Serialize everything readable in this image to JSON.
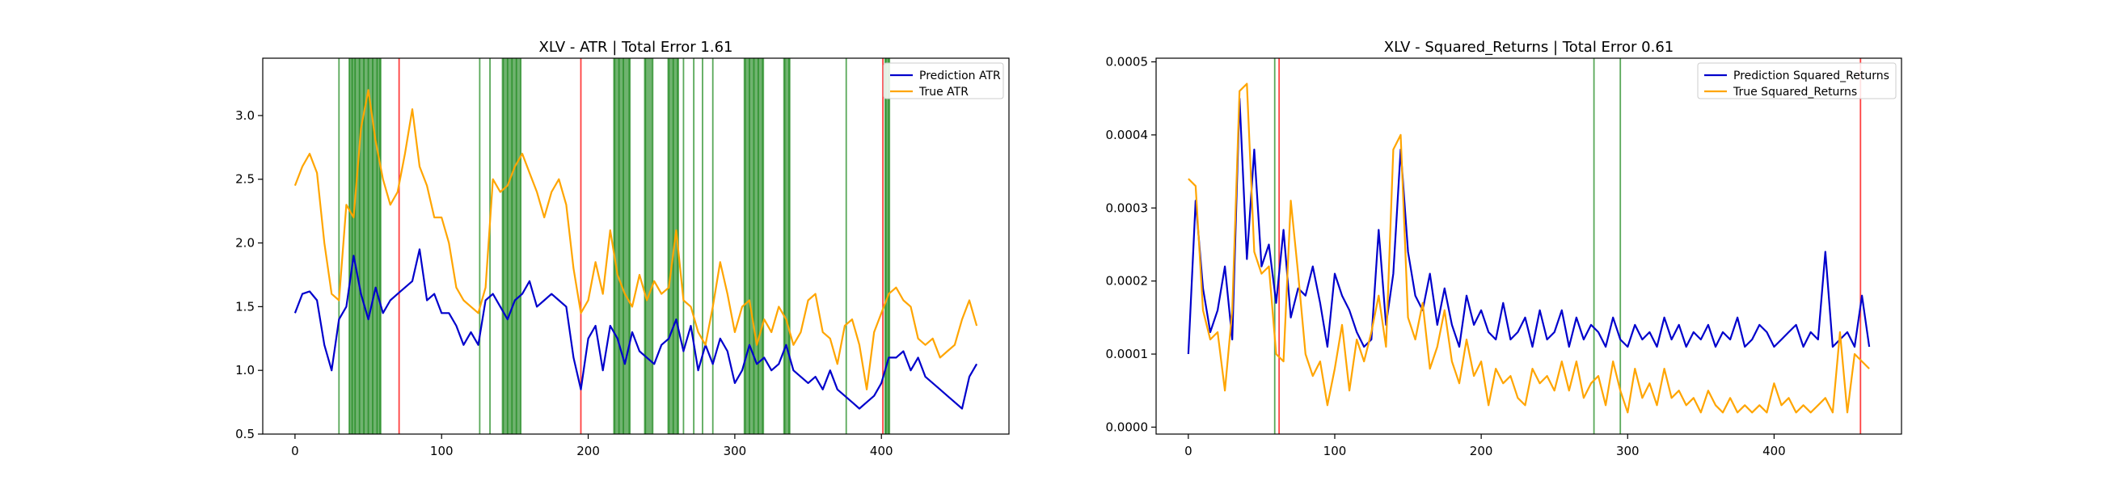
{
  "chart_data": [
    {
      "type": "line",
      "title": "XLV - ATR | Total Error 1.61",
      "xlabel": "",
      "ylabel": "",
      "xlim": [
        -22,
        487
      ],
      "ylim": [
        0.5,
        3.45
      ],
      "xticks": [
        0,
        100,
        200,
        300,
        400
      ],
      "yticks": [
        0.5,
        1.0,
        1.5,
        2.0,
        2.5,
        3.0
      ],
      "ytick_labels": [
        "0.5",
        "1.0",
        "1.5",
        "2.0",
        "2.5",
        "3.0"
      ],
      "legend": {
        "placement": "top-right"
      },
      "series": [
        {
          "name": "Prediction ATR",
          "color": "#0000cc",
          "x": [
            0,
            5,
            10,
            15,
            20,
            25,
            30,
            35,
            40,
            45,
            50,
            55,
            60,
            65,
            70,
            75,
            80,
            85,
            90,
            95,
            100,
            105,
            110,
            115,
            120,
            125,
            130,
            135,
            140,
            145,
            150,
            155,
            160,
            165,
            170,
            175,
            180,
            185,
            190,
            195,
            200,
            205,
            210,
            215,
            220,
            225,
            230,
            235,
            240,
            245,
            250,
            255,
            260,
            265,
            270,
            275,
            280,
            285,
            290,
            295,
            300,
            305,
            310,
            315,
            320,
            325,
            330,
            335,
            340,
            345,
            350,
            355,
            360,
            365,
            370,
            375,
            380,
            385,
            390,
            395,
            400,
            405,
            410,
            415,
            420,
            425,
            430,
            435,
            440,
            445,
            450,
            455,
            460,
            465
          ],
          "values": [
            1.45,
            1.6,
            1.62,
            1.55,
            1.2,
            1.0,
            1.4,
            1.5,
            1.9,
            1.6,
            1.4,
            1.65,
            1.45,
            1.55,
            1.6,
            1.65,
            1.7,
            1.95,
            1.55,
            1.6,
            1.45,
            1.45,
            1.35,
            1.2,
            1.3,
            1.2,
            1.55,
            1.6,
            1.5,
            1.4,
            1.55,
            1.6,
            1.7,
            1.5,
            1.55,
            1.6,
            1.55,
            1.5,
            1.1,
            0.85,
            1.25,
            1.35,
            1.0,
            1.35,
            1.25,
            1.05,
            1.3,
            1.15,
            1.1,
            1.05,
            1.2,
            1.25,
            1.4,
            1.15,
            1.35,
            1.0,
            1.2,
            1.05,
            1.25,
            1.15,
            0.9,
            1.0,
            1.2,
            1.05,
            1.1,
            1.0,
            1.05,
            1.2,
            1.0,
            0.95,
            0.9,
            0.95,
            0.85,
            1.0,
            0.85,
            0.8,
            0.75,
            0.7,
            0.75,
            0.8,
            0.9,
            1.1,
            1.1,
            1.15,
            1.0,
            1.1,
            0.95,
            0.9,
            0.85,
            0.8,
            0.75,
            0.7,
            0.95,
            1.05
          ]
        },
        {
          "name": "True ATR",
          "color": "#ffa500",
          "x": [
            0,
            5,
            10,
            15,
            20,
            25,
            30,
            35,
            40,
            45,
            50,
            55,
            60,
            65,
            70,
            75,
            80,
            85,
            90,
            95,
            100,
            105,
            110,
            115,
            120,
            125,
            130,
            135,
            140,
            145,
            150,
            155,
            160,
            165,
            170,
            175,
            180,
            185,
            190,
            195,
            200,
            205,
            210,
            215,
            220,
            225,
            230,
            235,
            240,
            245,
            250,
            255,
            260,
            265,
            270,
            275,
            280,
            285,
            290,
            295,
            300,
            305,
            310,
            315,
            320,
            325,
            330,
            335,
            340,
            345,
            350,
            355,
            360,
            365,
            370,
            375,
            380,
            385,
            390,
            395,
            400,
            405,
            410,
            415,
            420,
            425,
            430,
            435,
            440,
            445,
            450,
            455,
            460,
            465
          ],
          "values": [
            2.45,
            2.6,
            2.7,
            2.55,
            2.0,
            1.6,
            1.55,
            2.3,
            2.2,
            2.9,
            3.2,
            2.8,
            2.5,
            2.3,
            2.4,
            2.7,
            3.05,
            2.6,
            2.45,
            2.2,
            2.2,
            2.0,
            1.65,
            1.55,
            1.5,
            1.45,
            1.65,
            2.5,
            2.4,
            2.45,
            2.6,
            2.7,
            2.55,
            2.4,
            2.2,
            2.4,
            2.5,
            2.3,
            1.8,
            1.45,
            1.55,
            1.85,
            1.6,
            2.1,
            1.75,
            1.6,
            1.5,
            1.75,
            1.55,
            1.7,
            1.6,
            1.65,
            2.1,
            1.55,
            1.5,
            1.3,
            1.2,
            1.5,
            1.85,
            1.6,
            1.3,
            1.5,
            1.55,
            1.2,
            1.4,
            1.3,
            1.5,
            1.4,
            1.2,
            1.3,
            1.55,
            1.6,
            1.3,
            1.25,
            1.05,
            1.35,
            1.4,
            1.2,
            0.85,
            1.3,
            1.45,
            1.6,
            1.65,
            1.55,
            1.5,
            1.25,
            1.2,
            1.25,
            1.1,
            1.15,
            1.2,
            1.4,
            1.55,
            1.35
          ]
        }
      ],
      "vlines": [
        {
          "x": 30,
          "color": "#228b22"
        },
        {
          "x": 37,
          "color": "#228b22"
        },
        {
          "x": 39,
          "color": "#228b22"
        },
        {
          "x": 41,
          "color": "#228b22"
        },
        {
          "x": 44,
          "color": "#228b22"
        },
        {
          "x": 47,
          "color": "#228b22"
        },
        {
          "x": 50,
          "color": "#228b22"
        },
        {
          "x": 53,
          "color": "#228b22"
        },
        {
          "x": 56,
          "color": "#228b22"
        },
        {
          "x": 58,
          "color": "#228b22"
        },
        {
          "x": 71,
          "color": "#ff0000"
        },
        {
          "x": 126,
          "color": "#228b22"
        },
        {
          "x": 133,
          "color": "#228b22"
        },
        {
          "x": 142,
          "color": "#228b22"
        },
        {
          "x": 145,
          "color": "#228b22"
        },
        {
          "x": 148,
          "color": "#228b22"
        },
        {
          "x": 151,
          "color": "#228b22"
        },
        {
          "x": 154,
          "color": "#228b22"
        },
        {
          "x": 195,
          "color": "#ff0000"
        },
        {
          "x": 218,
          "color": "#228b22"
        },
        {
          "x": 221,
          "color": "#228b22"
        },
        {
          "x": 224,
          "color": "#228b22"
        },
        {
          "x": 228,
          "color": "#228b22"
        },
        {
          "x": 239,
          "color": "#228b22"
        },
        {
          "x": 244,
          "color": "#228b22"
        },
        {
          "x": 255,
          "color": "#228b22"
        },
        {
          "x": 258,
          "color": "#228b22"
        },
        {
          "x": 261,
          "color": "#228b22"
        },
        {
          "x": 265,
          "color": "#228b22"
        },
        {
          "x": 272,
          "color": "#228b22"
        },
        {
          "x": 278,
          "color": "#228b22"
        },
        {
          "x": 285,
          "color": "#228b22"
        },
        {
          "x": 307,
          "color": "#228b22"
        },
        {
          "x": 310,
          "color": "#228b22"
        },
        {
          "x": 313,
          "color": "#228b22"
        },
        {
          "x": 316,
          "color": "#228b22"
        },
        {
          "x": 319,
          "color": "#228b22"
        },
        {
          "x": 334,
          "color": "#228b22"
        },
        {
          "x": 337,
          "color": "#228b22"
        },
        {
          "x": 376,
          "color": "#228b22"
        },
        {
          "x": 401,
          "color": "#ff0000"
        },
        {
          "x": 403,
          "color": "#228b22"
        },
        {
          "x": 405,
          "color": "#228b22"
        }
      ],
      "shaded_spans": [
        {
          "x0": 37,
          "x1": 59,
          "color": "#228b22"
        },
        {
          "x0": 141,
          "x1": 154,
          "color": "#228b22"
        },
        {
          "x0": 217,
          "x1": 229,
          "color": "#228b22"
        },
        {
          "x0": 238,
          "x1": 244,
          "color": "#228b22"
        },
        {
          "x0": 254,
          "x1": 262,
          "color": "#228b22"
        },
        {
          "x0": 306,
          "x1": 320,
          "color": "#228b22"
        },
        {
          "x0": 333,
          "x1": 338,
          "color": "#228b22"
        },
        {
          "x0": 402,
          "x1": 406,
          "color": "#228b22"
        }
      ]
    },
    {
      "type": "line",
      "title": "XLV - Squared_Returns | Total Error 0.61",
      "xlabel": "",
      "ylabel": "",
      "xlim": [
        -22,
        487
      ],
      "ylim": [
        -9.5e-06,
        0.000505
      ],
      "xticks": [
        0,
        100,
        200,
        300,
        400
      ],
      "yticks": [
        0.0,
        0.0001,
        0.0002,
        0.0003,
        0.0004,
        0.0005
      ],
      "ytick_labels": [
        "0.0000",
        "0.0001",
        "0.0002",
        "0.0003",
        "0.0004",
        "0.0005"
      ],
      "legend": {
        "placement": "top-right"
      },
      "series": [
        {
          "name": "Prediction Squared_Returns",
          "color": "#0000cc",
          "x": [
            0,
            5,
            10,
            15,
            20,
            25,
            30,
            35,
            40,
            45,
            50,
            55,
            60,
            65,
            70,
            75,
            80,
            85,
            90,
            95,
            100,
            105,
            110,
            115,
            120,
            125,
            130,
            135,
            140,
            145,
            150,
            155,
            160,
            165,
            170,
            175,
            180,
            185,
            190,
            195,
            200,
            205,
            210,
            215,
            220,
            225,
            230,
            235,
            240,
            245,
            250,
            255,
            260,
            265,
            270,
            275,
            280,
            285,
            290,
            295,
            300,
            305,
            310,
            315,
            320,
            325,
            330,
            335,
            340,
            345,
            350,
            355,
            360,
            365,
            370,
            375,
            380,
            385,
            390,
            395,
            400,
            405,
            410,
            415,
            420,
            425,
            430,
            435,
            440,
            445,
            450,
            455,
            460,
            465
          ],
          "values": [
            0.0001,
            0.00031,
            0.00019,
            0.00013,
            0.00016,
            0.00022,
            0.00012,
            0.00045,
            0.00023,
            0.00038,
            0.00022,
            0.00025,
            0.00017,
            0.00027,
            0.00015,
            0.00019,
            0.00018,
            0.00022,
            0.00017,
            0.00011,
            0.00021,
            0.00018,
            0.00016,
            0.00013,
            0.00011,
            0.00012,
            0.00027,
            0.00014,
            0.00021,
            0.00038,
            0.00024,
            0.00018,
            0.00016,
            0.00021,
            0.00014,
            0.00019,
            0.00014,
            0.00011,
            0.00018,
            0.00014,
            0.00016,
            0.00013,
            0.00012,
            0.00017,
            0.00012,
            0.00013,
            0.00015,
            0.00011,
            0.00016,
            0.00012,
            0.00013,
            0.00016,
            0.00011,
            0.00015,
            0.00012,
            0.00014,
            0.00013,
            0.00011,
            0.00015,
            0.00012,
            0.00011,
            0.00014,
            0.00012,
            0.00013,
            0.00011,
            0.00015,
            0.00012,
            0.00014,
            0.00011,
            0.00013,
            0.00012,
            0.00014,
            0.00011,
            0.00013,
            0.00012,
            0.00015,
            0.00011,
            0.00012,
            0.00014,
            0.00013,
            0.00011,
            0.00012,
            0.00013,
            0.00014,
            0.00011,
            0.00013,
            0.00012,
            0.00024,
            0.00011,
            0.00012,
            0.00013,
            0.00011,
            0.00018,
            0.00011
          ]
        },
        {
          "name": "True Squared_Returns",
          "color": "#ffa500",
          "x": [
            0,
            5,
            10,
            15,
            20,
            25,
            30,
            35,
            40,
            45,
            50,
            55,
            60,
            65,
            70,
            75,
            80,
            85,
            90,
            95,
            100,
            105,
            110,
            115,
            120,
            125,
            130,
            135,
            140,
            145,
            150,
            155,
            160,
            165,
            170,
            175,
            180,
            185,
            190,
            195,
            200,
            205,
            210,
            215,
            220,
            225,
            230,
            235,
            240,
            245,
            250,
            255,
            260,
            265,
            270,
            275,
            280,
            285,
            290,
            295,
            300,
            305,
            310,
            315,
            320,
            325,
            330,
            335,
            340,
            345,
            350,
            355,
            360,
            365,
            370,
            375,
            380,
            385,
            390,
            395,
            400,
            405,
            410,
            415,
            420,
            425,
            430,
            435,
            440,
            445,
            450,
            455,
            460,
            465
          ],
          "values": [
            0.00034,
            0.00033,
            0.00016,
            0.00012,
            0.00013,
            5e-05,
            0.00016,
            0.00046,
            0.00047,
            0.00024,
            0.00021,
            0.00022,
            0.0001,
            9e-05,
            0.00031,
            0.00021,
            0.0001,
            7e-05,
            9e-05,
            3e-05,
            8e-05,
            0.00014,
            5e-05,
            0.00012,
            9e-05,
            0.00013,
            0.00018,
            0.00011,
            0.00038,
            0.0004,
            0.00015,
            0.00012,
            0.00017,
            8e-05,
            0.00011,
            0.00016,
            9e-05,
            6e-05,
            0.00012,
            7e-05,
            9e-05,
            3e-05,
            8e-05,
            6e-05,
            7e-05,
            4e-05,
            3e-05,
            8e-05,
            6e-05,
            7e-05,
            5e-05,
            9e-05,
            5e-05,
            9e-05,
            4e-05,
            6e-05,
            7e-05,
            3e-05,
            9e-05,
            5e-05,
            2e-05,
            8e-05,
            4e-05,
            6e-05,
            3e-05,
            8e-05,
            4e-05,
            5e-05,
            3e-05,
            4e-05,
            2e-05,
            5e-05,
            3e-05,
            2e-05,
            4e-05,
            2e-05,
            3e-05,
            2e-05,
            3e-05,
            2e-05,
            6e-05,
            3e-05,
            4e-05,
            2e-05,
            3e-05,
            2e-05,
            3e-05,
            4e-05,
            2e-05,
            0.00013,
            2e-05,
            0.0001,
            9e-05,
            8e-05
          ]
        }
      ],
      "vlines": [
        {
          "x": 59,
          "color": "#228b22"
        },
        {
          "x": 62,
          "color": "#ff0000"
        },
        {
          "x": 277,
          "color": "#228b22"
        },
        {
          "x": 295,
          "color": "#228b22"
        },
        {
          "x": 459,
          "color": "#ff0000"
        }
      ],
      "shaded_spans": []
    }
  ]
}
